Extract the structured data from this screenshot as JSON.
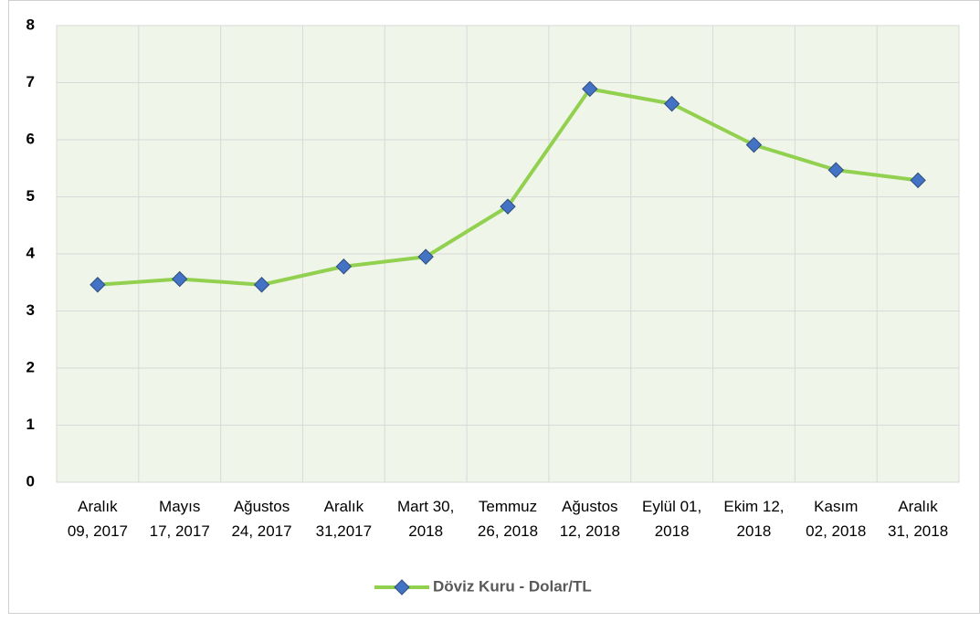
{
  "chart_data": {
    "type": "line",
    "categories": [
      "Aralık\n09, 2017",
      "Mayıs\n17, 2017",
      "Ağustos\n24, 2017",
      "Aralık\n31,2017",
      "Mart 30,\n2018",
      "Temmuz\n26, 2018",
      "Ağustos\n12, 2018",
      "Eylül 01,\n2018",
      "Ekim 12,\n2018",
      "Kasım\n02, 2018",
      "Aralık\n31, 2018"
    ],
    "series": [
      {
        "name": "Döviz Kuru - Dolar/TL",
        "color": "#92d050",
        "marker_color": "#4472c4",
        "values": [
          3.46,
          3.56,
          3.46,
          3.78,
          3.95,
          4.83,
          6.89,
          6.63,
          5.91,
          5.47,
          5.29
        ]
      }
    ],
    "ylim": [
      0,
      8
    ],
    "yticks": [
      0,
      1,
      2,
      3,
      4,
      5,
      6,
      7,
      8
    ],
    "grid": true,
    "legend": "bottom"
  }
}
